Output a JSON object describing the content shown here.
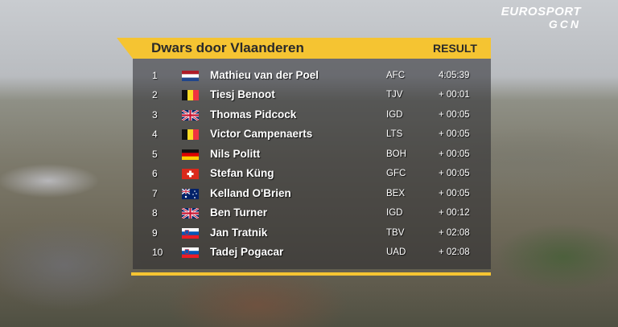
{
  "logo": {
    "line1": "EUROSPORT",
    "line2": "GCN"
  },
  "header": {
    "title": "Dwars door Vlaanderen",
    "label": "RESULT"
  },
  "table": {
    "rows": [
      [
        1,
        "Mathieu van der Poel",
        "AFC",
        "4:05:39"
      ],
      [
        2,
        "Tiesj Benoot",
        "TJV",
        "+ 00:01"
      ],
      [
        3,
        "Thomas Pidcock",
        "IGD",
        "+ 00:05"
      ],
      [
        4,
        "Victor Campenaerts",
        "LTS",
        "+ 00:05"
      ],
      [
        5,
        "Nils Politt",
        "BOH",
        "+ 00:05"
      ],
      [
        6,
        "Stefan Küng",
        "GFC",
        "+ 00:05"
      ],
      [
        7,
        "Kelland O'Brien",
        "BEX",
        "+ 00:05"
      ],
      [
        8,
        "Ben Turner",
        "IGD",
        "+ 00:12"
      ],
      [
        9,
        "Jan Tratnik",
        "TBV",
        "+ 02:08"
      ],
      [
        10,
        "Tadej Pogacar",
        "UAD",
        "+ 02:08"
      ]
    ]
  }
}
